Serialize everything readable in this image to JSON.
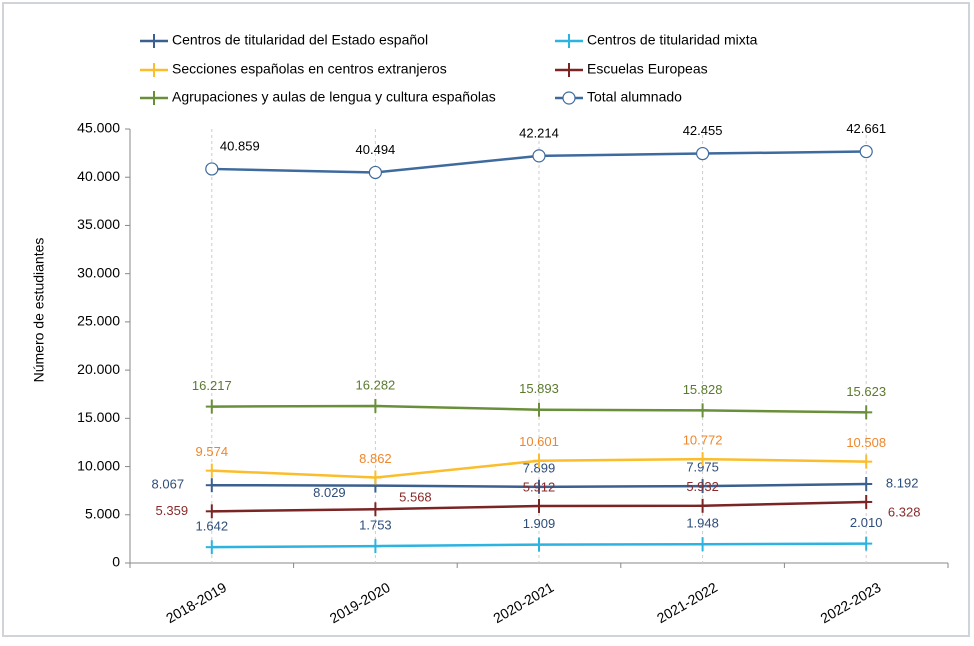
{
  "chart_data": {
    "type": "line",
    "y_label": "Número de estudiantes",
    "categories": [
      "2018-2019",
      "2019-2020",
      "2020-2021",
      "2021-2022",
      "2022-2023"
    ],
    "ylim": [
      0,
      45000
    ],
    "yticks": [
      0,
      {
        "value": 5000,
        "label": "5.000"
      },
      {
        "value": 10000,
        "label": "10.000"
      },
      {
        "value": 15000,
        "label": "15.000"
      },
      {
        "value": 20000,
        "label": "20.000"
      },
      {
        "value": 25000,
        "label": "25.000"
      },
      {
        "value": 30000,
        "label": "30.000"
      },
      {
        "value": 35000,
        "label": "35.000"
      },
      {
        "value": 40000,
        "label": "40.000"
      },
      {
        "value": 45000,
        "label": "45.000"
      }
    ],
    "legend": "top",
    "grid": "x",
    "series": [
      {
        "name": "Centros de titularidad del Estado español",
        "color": "#3b5f8e",
        "label_color": "#2e4d7a",
        "marker": "plus",
        "values": [
          8067,
          8029,
          7899,
          7975,
          8192
        ],
        "value_labels": [
          "8.067",
          "8.029",
          "7.899",
          "7.975",
          "8.192"
        ]
      },
      {
        "name": "Centros de titularidad mixta",
        "color": "#2db3e0",
        "label_color": "#2e4d7a",
        "marker": "plus",
        "values": [
          1642,
          1753,
          1909,
          1948,
          2010
        ],
        "value_labels": [
          "1.642",
          "1.753",
          "1.909",
          "1.948",
          "2.010"
        ]
      },
      {
        "name": "Secciones españolas en centros extranjeros",
        "color": "#fbbd2b",
        "label_color": "#f0862a",
        "marker": "plus",
        "values": [
          9574,
          8862,
          10601,
          10772,
          10508
        ],
        "value_labels": [
          "9.574",
          "8.862",
          "10.601",
          "10.772",
          "10.508"
        ]
      },
      {
        "name": "Escuelas Europeas",
        "color": "#7a2424",
        "label_color": "#8a2a2a",
        "marker": "plus",
        "values": [
          5359,
          5568,
          5912,
          5932,
          6328
        ],
        "value_labels": [
          "5.359",
          "5.568",
          "5.912",
          "5.932",
          "6.328"
        ]
      },
      {
        "name": "Agrupaciones y aulas de lengua y cultura españolas",
        "color": "#6a8f3a",
        "label_color": "#5a7a2e",
        "marker": "plus",
        "values": [
          16217,
          16282,
          15893,
          15828,
          15623
        ],
        "value_labels": [
          "16.217",
          "16.282",
          "15.893",
          "15.828",
          "15.623"
        ]
      },
      {
        "name": "Total alumnado",
        "color": "#3e6a9e",
        "label_color": "#000000",
        "marker": "circle",
        "values": [
          40859,
          40494,
          42214,
          42455,
          42661
        ],
        "value_labels": [
          "40.859",
          "40.494",
          "42.214",
          "42.455",
          "42.661"
        ]
      }
    ]
  }
}
